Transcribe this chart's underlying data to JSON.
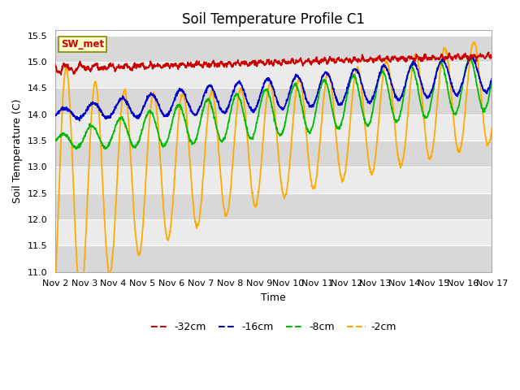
{
  "title": "Soil Temperature Profile C1",
  "xlabel": "Time",
  "ylabel": "Soil Temperature (C)",
  "ylim": [
    11.0,
    15.6
  ],
  "yticks": [
    11.0,
    11.5,
    12.0,
    12.5,
    13.0,
    13.5,
    14.0,
    14.5,
    15.0,
    15.5
  ],
  "legend_colors": [
    "#cc0000",
    "#0000cc",
    "#00bb00",
    "#ffaa00"
  ],
  "legend_labels": [
    "-32cm",
    "-16cm",
    "-8cm",
    "-2cm"
  ],
  "sw_met_label": "SW_met",
  "band_colors": [
    "#e8e8e8",
    "#d0d0d0"
  ],
  "background_color": "#ffffff",
  "title_fontsize": 12,
  "label_fontsize": 9,
  "tick_fontsize": 8
}
